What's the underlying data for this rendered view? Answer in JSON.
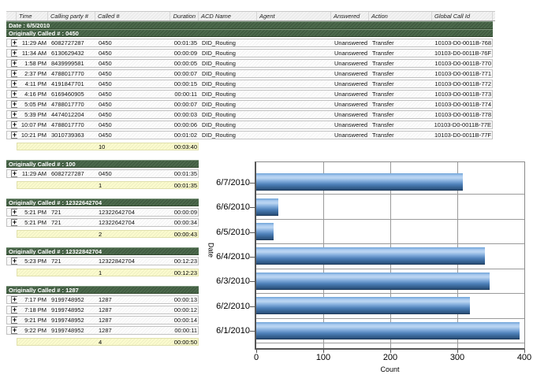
{
  "table": {
    "columns": [
      "Time",
      "Calling party #",
      "Called #",
      "Duration",
      "ACD Name",
      "Agent",
      "Answered",
      "Action",
      "Global Call Id"
    ],
    "date_group": "Date : 6/5/2010",
    "expand_glyph": "+",
    "sections": [
      {
        "title": "Originally Called # : 0450",
        "wide": true,
        "rows": [
          {
            "time": "11:29 AM",
            "calling": "6082727287",
            "called": "0450",
            "duration": "00:01:35",
            "acd": "DID_Routing",
            "agent": "",
            "answered": "Unanswered",
            "action": "Transfer",
            "gcid": "10103-D0-0011B-768"
          },
          {
            "time": "11:34 AM",
            "calling": "6130629432",
            "called": "0450",
            "duration": "00:00:09",
            "acd": "DID_Routing",
            "agent": "",
            "answered": "Unanswered",
            "action": "Transfer",
            "gcid": "10103-D0-0011B-76F"
          },
          {
            "time": "1:58 PM",
            "calling": "8439999581",
            "called": "0450",
            "duration": "00:00:05",
            "acd": "DID_Routing",
            "agent": "",
            "answered": "Unanswered",
            "action": "Transfer",
            "gcid": "10103-D0-0011B-770"
          },
          {
            "time": "2:37 PM",
            "calling": "4788017770",
            "called": "0450",
            "duration": "00:00:07",
            "acd": "DID_Routing",
            "agent": "",
            "answered": "Unanswered",
            "action": "Transfer",
            "gcid": "10103-D0-0011B-771"
          },
          {
            "time": "4:11 PM",
            "calling": "4191847701",
            "called": "0450",
            "duration": "00:00:15",
            "acd": "DID_Routing",
            "agent": "",
            "answered": "Unanswered",
            "action": "Transfer",
            "gcid": "10103-D0-0011B-772"
          },
          {
            "time": "4:16 PM",
            "calling": "6169460905",
            "called": "0450",
            "duration": "00:00:11",
            "acd": "DID_Routing",
            "agent": "",
            "answered": "Unanswered",
            "action": "Transfer",
            "gcid": "10103-D0-0011B-773"
          },
          {
            "time": "5:05 PM",
            "calling": "4788017770",
            "called": "0450",
            "duration": "00:00:07",
            "acd": "DID_Routing",
            "agent": "",
            "answered": "Unanswered",
            "action": "Transfer",
            "gcid": "10103-D0-0011B-774"
          },
          {
            "time": "5:39 PM",
            "calling": "4474012204",
            "called": "0450",
            "duration": "00:00:03",
            "acd": "DID_Routing",
            "agent": "",
            "answered": "Unanswered",
            "action": "Transfer",
            "gcid": "10103-D0-0011B-778"
          },
          {
            "time": "10:07 PM",
            "calling": "4788017770",
            "called": "0450",
            "duration": "00:00:06",
            "acd": "DID_Routing",
            "agent": "",
            "answered": "Unanswered",
            "action": "Transfer",
            "gcid": "10103-D0-0011B-77E"
          },
          {
            "time": "10:21 PM",
            "calling": "3010739363",
            "called": "0450",
            "duration": "00:01:02",
            "acd": "DID_Routing",
            "agent": "",
            "answered": "Unanswered",
            "action": "Transfer",
            "gcid": "10103-D0-0011B-77F"
          }
        ],
        "summary": {
          "count": "10",
          "duration": "00:03:40"
        }
      },
      {
        "title": "Originally Called # : 100",
        "wide": false,
        "rows": [
          {
            "time": "11:29 AM",
            "calling": "6082727287",
            "called": "0450",
            "duration": "00:01:35"
          }
        ],
        "summary": {
          "count": "1",
          "duration": "00:01:35"
        }
      },
      {
        "title": "Originally Called # : 12322642704",
        "wide": false,
        "rows": [
          {
            "time": "5:21 PM",
            "calling": "721",
            "called": "12322642704",
            "duration": "00:00:09"
          },
          {
            "time": "5:21 PM",
            "calling": "721",
            "called": "12322642704",
            "duration": "00:00:34"
          }
        ],
        "summary": {
          "count": "2",
          "duration": "00:00:43"
        }
      },
      {
        "title": "Originally Called # : 12322842704",
        "wide": false,
        "rows": [
          {
            "time": "5:23 PM",
            "calling": "721",
            "called": "12322842704",
            "duration": "00:12:23"
          }
        ],
        "summary": {
          "count": "1",
          "duration": "00:12:23"
        }
      },
      {
        "title": "Originally Called # : 1287",
        "wide": false,
        "rows": [
          {
            "time": "7:17 PM",
            "calling": "9199748952",
            "called": "1287",
            "duration": "00:00:13"
          },
          {
            "time": "7:18 PM",
            "calling": "9199748952",
            "called": "1287",
            "duration": "00:00:12"
          },
          {
            "time": "9:21 PM",
            "calling": "9199748952",
            "called": "1287",
            "duration": "00:00:14"
          },
          {
            "time": "9:22 PM",
            "calling": "9199748952",
            "called": "1287",
            "duration": "00:00:11"
          }
        ],
        "summary": {
          "count": "4",
          "duration": "00:00:50"
        }
      }
    ]
  },
  "chart_data": {
    "type": "bar",
    "orientation": "horizontal",
    "categories": [
      "6/7/2010",
      "6/6/2010",
      "6/5/2010",
      "6/4/2010",
      "6/3/2010",
      "6/2/2010",
      "6/1/2010"
    ],
    "values": [
      308,
      33,
      26,
      341,
      348,
      319,
      393
    ],
    "title": "",
    "xlabel": "Count",
    "ylabel": "Date",
    "xlim": [
      0,
      400
    ],
    "xticks": [
      0,
      100,
      200,
      300,
      400
    ],
    "grid": true,
    "legend": false,
    "bar_color": "#4d7fb8"
  },
  "colors": {
    "group_bar_green": "#4c6a4c",
    "summary_yellow": "#fbfbce",
    "bar_blue_light": "#bcd6f2",
    "bar_blue_dark": "#294d76",
    "grid_gray": "#9a9a9a"
  }
}
